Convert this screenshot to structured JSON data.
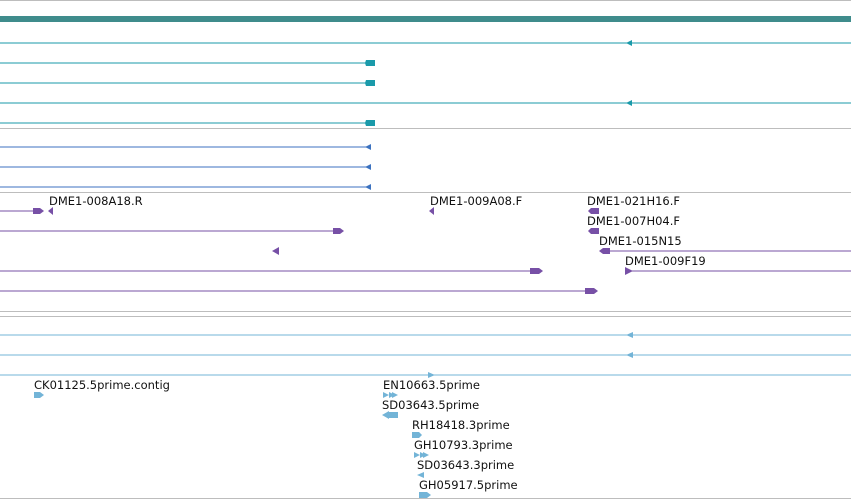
{
  "colors": {
    "background": "#ffffff",
    "divider": "#bdbdbd",
    "header_band": "#3f8c8c",
    "teal_track": "#1a9aaa",
    "blue_track": "#3c72c0",
    "purple_track": "#7750a6",
    "light_blue_track": "#73b4d7"
  },
  "labels": {
    "dme1_008a18_r": "DME1-008A18.R",
    "dme1_009a08_f": "DME1-009A08.F",
    "dme1_021h16_f": "DME1-021H16.F",
    "dme1_007h04_f": "DME1-007H04.F",
    "dme1_015n15": "DME1-015N15",
    "dme1_009f19": "DME1-009F19",
    "ck01125_5prime_contig": "CK01125.5prime.contig",
    "en10663_5prime": "EN10663.5prime",
    "sd03643_5prime": "SD03643.5prime",
    "rh18418_3prime": "RH18418.3prime",
    "gh10793_3prime": "GH10793.3prime",
    "sd03643_3prime": "SD03643.3prime",
    "gh05917_5prime": "GH05917.5prime"
  }
}
